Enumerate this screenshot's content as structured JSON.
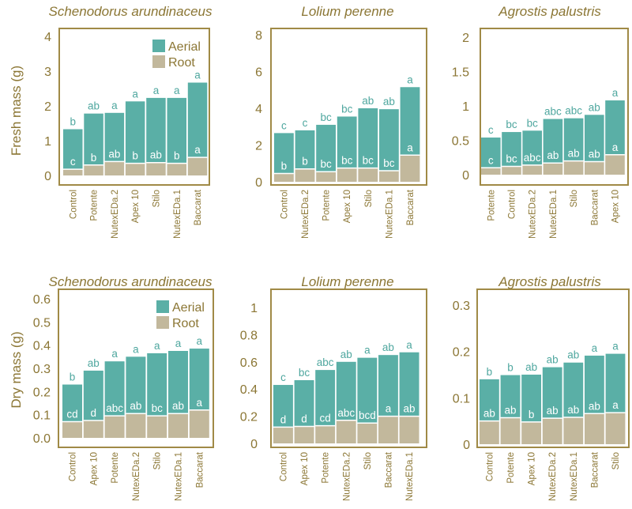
{
  "figure": {
    "row_labels": [
      "Fresh mass (g)",
      "Dry mass (g)"
    ],
    "legend": {
      "aerial": "Aerial",
      "root": "Root"
    },
    "colors": {
      "aerial": "#5aafa6",
      "root": "#c2b89c",
      "axis": "#a08a46",
      "text": "#8b7634",
      "letter_above": "#4fa79f"
    }
  },
  "chart_data": [
    {
      "type": "bar",
      "stacked": true,
      "title": "Schenodorus arundinaceus",
      "ylabel": "Fresh mass (g)",
      "ylim": [
        0,
        4.2
      ],
      "yticks": [
        0,
        1,
        2,
        3,
        4
      ],
      "tick_labels": [
        "0",
        "1",
        "2",
        "3",
        "4"
      ],
      "legend": true,
      "categories": [
        "Control",
        "Potente",
        "NutexEDa.2",
        "Apex 10",
        "Stilo",
        "NutexEDa.1",
        "Baccarat"
      ],
      "series": [
        {
          "name": "Root",
          "values": [
            0.18,
            0.3,
            0.4,
            0.35,
            0.37,
            0.35,
            0.52
          ]
        },
        {
          "name": "Aerial",
          "values": [
            1.15,
            1.48,
            1.4,
            1.78,
            1.86,
            1.88,
            2.15
          ]
        }
      ],
      "letters_total": [
        "b",
        "ab",
        "a",
        "a",
        "a",
        "a",
        "a"
      ],
      "letters_root": [
        "c",
        "b",
        "ab",
        "b",
        "ab",
        "b",
        "a"
      ]
    },
    {
      "type": "bar",
      "stacked": true,
      "title": "Lolium perenne",
      "ylabel": "",
      "ylim": [
        0,
        8.2
      ],
      "yticks": [
        0,
        2,
        4,
        6,
        8
      ],
      "tick_labels": [
        "0",
        "2",
        "4",
        "6",
        "8"
      ],
      "legend": false,
      "categories": [
        "Control",
        "NutexEDa.2",
        "Potente",
        "Apex 10",
        "Stilo",
        "NutexEDa.1",
        "Baccarat"
      ],
      "series": [
        {
          "name": "Root",
          "values": [
            0.45,
            0.7,
            0.55,
            0.75,
            0.75,
            0.6,
            1.45
          ]
        },
        {
          "name": "Aerial",
          "values": [
            2.2,
            2.1,
            2.55,
            2.8,
            3.25,
            3.35,
            3.7
          ]
        }
      ],
      "letters_total": [
        "c",
        "c",
        "bc",
        "bc",
        "ab",
        "ab",
        "a"
      ],
      "letters_root": [
        "b",
        "b",
        "bc",
        "bc",
        "bc",
        "bc",
        "a"
      ]
    },
    {
      "type": "bar",
      "stacked": true,
      "title": "Agrostis palustris",
      "ylabel": "",
      "ylim": [
        0,
        2.05
      ],
      "yticks": [
        0,
        0.5,
        1,
        1.5,
        2
      ],
      "tick_labels": [
        "0",
        "0.5",
        "1",
        "1.5",
        "2"
      ],
      "legend": false,
      "categories": [
        "Potente",
        "Control",
        "NutexEDa.2",
        "NutexEDa.1",
        "Stilo",
        "Baccarat",
        "Apex 10"
      ],
      "series": [
        {
          "name": "Root",
          "values": [
            0.1,
            0.12,
            0.14,
            0.17,
            0.2,
            0.19,
            0.29
          ]
        },
        {
          "name": "Aerial",
          "values": [
            0.44,
            0.5,
            0.5,
            0.64,
            0.62,
            0.68,
            0.79
          ]
        }
      ],
      "letters_total": [
        "c",
        "bc",
        "bc",
        "abc",
        "abc",
        "ab",
        "a"
      ],
      "letters_root": [
        "c",
        "bc",
        "abc",
        "ab",
        "ab",
        "ab",
        "a"
      ]
    },
    {
      "type": "bar",
      "stacked": true,
      "title": "Schenodorus arundinaceus",
      "ylabel": "Dry mass (g)",
      "ylim": [
        0,
        0.6
      ],
      "yticks": [
        0,
        0.1,
        0.2,
        0.3,
        0.4,
        0.5,
        0.6
      ],
      "tick_labels": [
        "0.0",
        "0.1",
        "0.2",
        "0.3",
        "0.4",
        "0.5",
        "0.6"
      ],
      "legend": true,
      "categories": [
        "Control",
        "Apex 10",
        "Potente",
        "NutexEDa.2",
        "Stilo",
        "NutexEDa.1",
        "Baccarat"
      ],
      "series": [
        {
          "name": "Root",
          "values": [
            0.07,
            0.075,
            0.095,
            0.105,
            0.095,
            0.105,
            0.12
          ]
        },
        {
          "name": "Aerial",
          "values": [
            0.16,
            0.215,
            0.235,
            0.245,
            0.27,
            0.27,
            0.265
          ]
        }
      ],
      "letters_total": [
        "b",
        "ab",
        "a",
        "a",
        "a",
        "a",
        "a"
      ],
      "letters_root": [
        "cd",
        "d",
        "abc",
        "ab",
        "bc",
        "ab",
        "a"
      ]
    },
    {
      "type": "bar",
      "stacked": true,
      "title": "Lolium perenne",
      "ylabel": "",
      "ylim": [
        0,
        1.03
      ],
      "yticks": [
        0,
        0.2,
        0.4,
        0.6,
        0.8,
        1
      ],
      "tick_labels": [
        "0",
        "0.2",
        "0.4",
        "0.6",
        "0.8",
        "1"
      ],
      "legend": false,
      "categories": [
        "Control",
        "Apex 10",
        "Potente",
        "NutexEDa.2",
        "Stilo",
        "Baccarat",
        "NutexEDa.1"
      ],
      "series": [
        {
          "name": "Root",
          "values": [
            0.12,
            0.125,
            0.13,
            0.17,
            0.15,
            0.2,
            0.2
          ]
        },
        {
          "name": "Aerial",
          "values": [
            0.31,
            0.34,
            0.41,
            0.43,
            0.48,
            0.45,
            0.47
          ]
        }
      ],
      "letters_total": [
        "c",
        "bc",
        "abc",
        "ab",
        "a",
        "ab",
        "a"
      ],
      "letters_root": [
        "d",
        "d",
        "cd",
        "abc",
        "bcd",
        "a",
        "ab"
      ]
    },
    {
      "type": "bar",
      "stacked": true,
      "title": "Agrostis palustris",
      "ylabel": "",
      "ylim": [
        0,
        0.31
      ],
      "yticks": [
        0,
        0.1,
        0.2,
        0.3
      ],
      "tick_labels": [
        "0",
        "0.1",
        "0.2",
        "0.3"
      ],
      "legend": false,
      "categories": [
        "Control",
        "Potente",
        "Apex 10",
        "NutexEDa.2",
        "NutexEDa.1",
        "Baccarat",
        "Stilo"
      ],
      "series": [
        {
          "name": "Root",
          "values": [
            0.05,
            0.057,
            0.048,
            0.056,
            0.058,
            0.066,
            0.068
          ]
        },
        {
          "name": "Aerial",
          "values": [
            0.09,
            0.092,
            0.102,
            0.11,
            0.118,
            0.125,
            0.127
          ]
        }
      ],
      "letters_total": [
        "b",
        "b",
        "ab",
        "ab",
        "ab",
        "a",
        "a"
      ],
      "letters_root": [
        "ab",
        "ab",
        "b",
        "ab",
        "ab",
        "ab",
        "a"
      ]
    }
  ]
}
